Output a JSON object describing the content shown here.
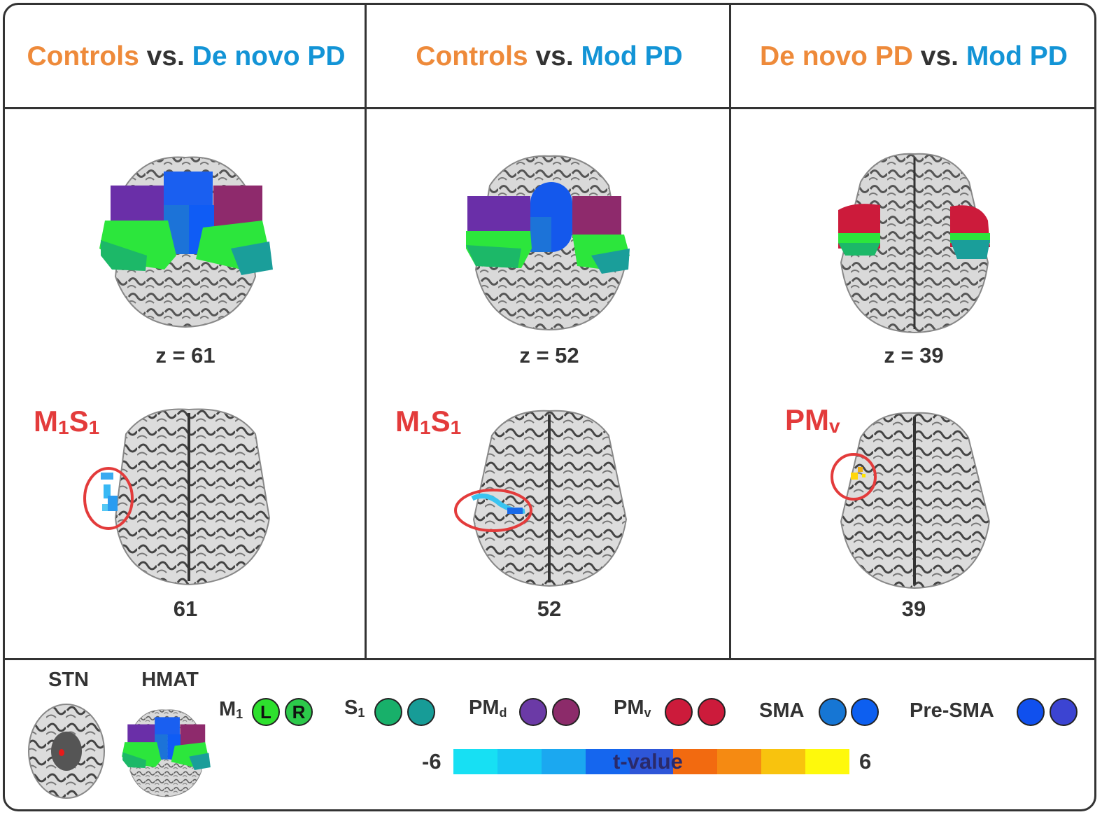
{
  "panels": [
    {
      "title": {
        "left": "Controls",
        "vs": "vs.",
        "right": "De novo PD"
      },
      "top_slice_label": "z = 61",
      "region_base": "M",
      "region_sub1": "1",
      "region_mid": "S",
      "region_sub2": "1",
      "bottom_slice_label": "61"
    },
    {
      "title": {
        "left": "Controls",
        "vs": "vs.",
        "right": "Mod PD"
      },
      "top_slice_label": "z = 52",
      "region_base": "M",
      "region_sub1": "1",
      "region_mid": "S",
      "region_sub2": "1",
      "bottom_slice_label": "52"
    },
    {
      "title": {
        "left": "De novo PD",
        "vs": "vs.",
        "right": "Mod PD"
      },
      "top_slice_label": "z = 39",
      "region_base": "PM",
      "region_sub1": "v",
      "region_mid": "",
      "region_sub2": "",
      "bottom_slice_label": "39"
    }
  ],
  "legend": {
    "stn": "STN",
    "hmat": "HMAT",
    "items": [
      {
        "base": "M",
        "sub": "1",
        "left": "L",
        "right": "R",
        "left_color": "#2de02d",
        "right_color": "#2cc94a"
      },
      {
        "base": "S",
        "sub": "1",
        "left": "",
        "right": "",
        "left_color": "#18b06a",
        "right_color": "#179c97"
      },
      {
        "base": "PM",
        "sub": "d",
        "left": "",
        "right": "",
        "left_color": "#6b3aa6",
        "right_color": "#8c2b6a"
      },
      {
        "base": "PM",
        "sub": "v",
        "left": "",
        "right": "",
        "left_color": "#cc1b3b",
        "right_color": "#cc1b3b"
      },
      {
        "base": "SMA",
        "sub": "",
        "left": "",
        "right": "",
        "left_color": "#1676d4",
        "right_color": "#0d5ff0"
      },
      {
        "base": "Pre-SMA",
        "sub": "",
        "left": "",
        "right": "",
        "left_color": "#1050ee",
        "right_color": "#3c44d2"
      }
    ]
  },
  "colorbar": {
    "min_label": "-6",
    "max_label": "6",
    "title": "t-value",
    "colors": [
      "#17e0f3",
      "#17c7f3",
      "#1ba8f0",
      "#1566ee",
      "#2e56d8",
      "#f26a10",
      "#f58a12",
      "#f8c30e",
      "#fef90c"
    ]
  },
  "colors": {
    "orange": "#ee8a3a",
    "blue": "#1394d6",
    "circle_red": "#e33b3b"
  }
}
